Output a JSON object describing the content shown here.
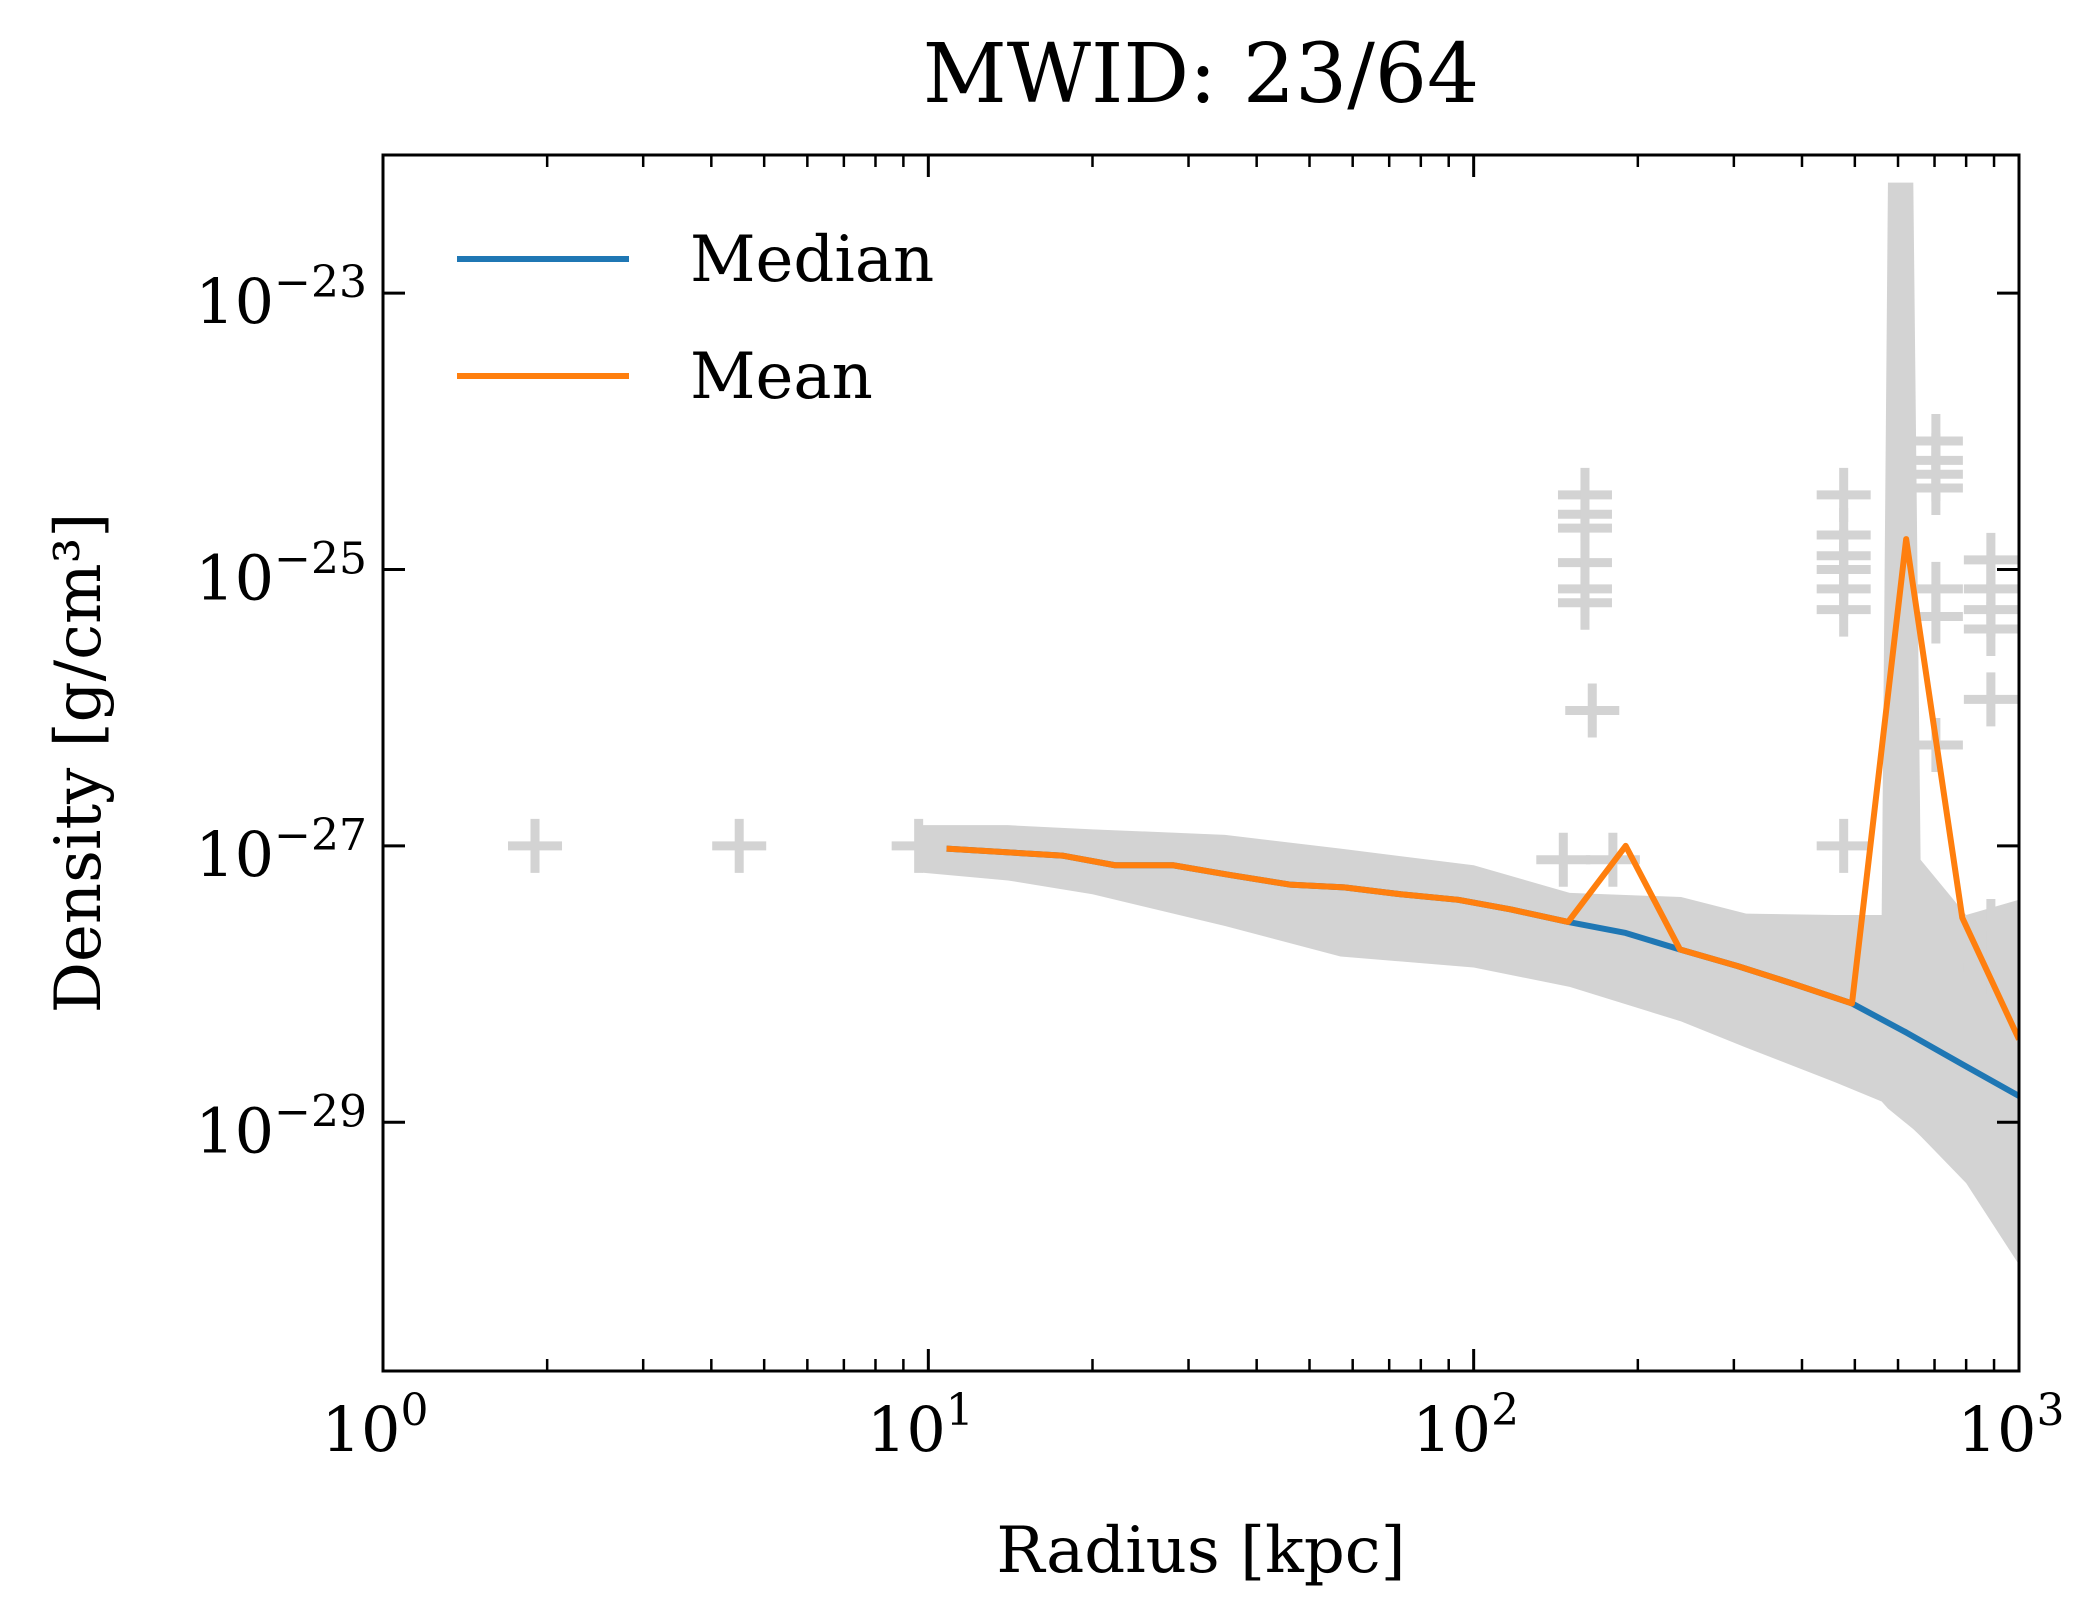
{
  "chart_data": {
    "type": "line",
    "title": "MWID: 23/64",
    "xlabel": "Radius [kpc]",
    "ylabel": "Density [g/cm³]",
    "xscale": "log",
    "yscale": "log",
    "xlim": [
      1,
      1000
    ],
    "ylim_log10": [
      -30.8,
      -22.0
    ],
    "x_ticks": [
      {
        "value": 1,
        "base": "10",
        "exp": "0"
      },
      {
        "value": 10,
        "base": "10",
        "exp": "1"
      },
      {
        "value": 100,
        "base": "10",
        "exp": "2"
      },
      {
        "value": 1000,
        "base": "10",
        "exp": "3"
      }
    ],
    "y_ticks": [
      {
        "log10": -23,
        "base": "10",
        "exp": "−23"
      },
      {
        "log10": -25,
        "base": "10",
        "exp": "−25"
      },
      {
        "log10": -27,
        "base": "10",
        "exp": "−27"
      },
      {
        "log10": -29,
        "base": "10",
        "exp": "−29"
      }
    ],
    "grid": false,
    "legend": {
      "placement": "top-left"
    },
    "series": [
      {
        "name": "Median",
        "color": "#1f77b4",
        "x": [
          10.8,
          17.6,
          22,
          28.1,
          35.7,
          46,
          57.9,
          73.5,
          93.7,
          117,
          149,
          190,
          239,
          305,
          387,
          494,
          621,
          787,
          1000
        ],
        "log10_y": [
          -27.02,
          -27.07,
          -27.14,
          -27.14,
          -27.21,
          -27.28,
          -27.3,
          -27.35,
          -27.39,
          -27.46,
          -27.55,
          -27.63,
          -27.75,
          -27.87,
          -28.0,
          -28.14,
          -28.35,
          -28.58,
          -28.81
        ]
      },
      {
        "name": "Mean",
        "color": "#ff7f0e",
        "x": [
          10.8,
          17.6,
          22,
          28.1,
          35.7,
          46,
          57.9,
          73.5,
          93.7,
          117,
          149,
          190,
          239,
          305,
          387,
          494,
          621,
          787,
          1000
        ],
        "log10_y": [
          -27.02,
          -27.07,
          -27.14,
          -27.14,
          -27.21,
          -27.28,
          -27.3,
          -27.35,
          -27.39,
          -27.46,
          -27.55,
          -27.0,
          -27.75,
          -27.87,
          -28.0,
          -28.14,
          -24.78,
          -27.52,
          -28.4
        ]
      }
    ],
    "scatter_band": {
      "color": "#d3d3d3",
      "x": [
        9.5,
        14,
        20,
        35,
        57,
        100,
        150,
        240,
        316,
        460,
        560,
        575,
        640,
        660,
        800,
        1000
      ],
      "log10_lower": [
        -27.19,
        -27.25,
        -27.35,
        -27.58,
        -27.8,
        -27.88,
        -28.02,
        -28.27,
        -28.46,
        -28.71,
        -28.85,
        -28.9,
        -29.05,
        -29.1,
        -29.44,
        -30.03
      ],
      "log10_upper": [
        -26.85,
        -26.85,
        -26.88,
        -26.92,
        -27.02,
        -27.14,
        -27.34,
        -27.37,
        -27.49,
        -27.5,
        -27.5,
        -22.2,
        -22.2,
        -27.1,
        -27.5,
        -27.39
      ]
    },
    "scatter_outliers": {
      "color": "#d3d3d3",
      "x": [
        1.9,
        4.5,
        9.6,
        146,
        180,
        160,
        160,
        160,
        160,
        160,
        160,
        165,
        477,
        477,
        477,
        477,
        477,
        477,
        477,
        704,
        704,
        704,
        704,
        704,
        704,
        704,
        888,
        888,
        888,
        888,
        888,
        888,
        888
      ],
      "log10_y": [
        -27.0,
        -27.0,
        -27.0,
        -27.1,
        -27.1,
        -24.46,
        -24.6,
        -24.7,
        -24.95,
        -25.14,
        -25.24,
        -26.02,
        -24.46,
        -24.75,
        -24.9,
        -25.0,
        -25.14,
        -25.29,
        -27.0,
        -24.07,
        -24.21,
        -24.31,
        -24.41,
        -25.14,
        -25.34,
        -26.27,
        -24.93,
        -25.14,
        -25.29,
        -25.43,
        -25.94,
        -27.58,
        -27.88
      ]
    }
  }
}
